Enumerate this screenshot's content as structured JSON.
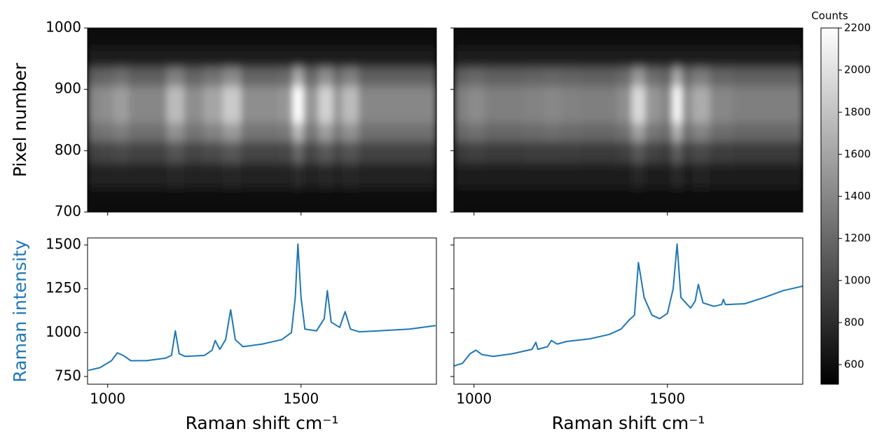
{
  "chart_data": [
    {
      "type": "heatmap",
      "ylabel": "Pixel number",
      "xlim": [
        948,
        1850
      ],
      "ylim": [
        700,
        1000
      ],
      "xticks": [
        1000,
        1500
      ],
      "yticks": [
        700,
        800,
        900,
        1000
      ],
      "show_xticklabels": false,
      "x": [
        960,
        1000,
        1030,
        1080,
        1130,
        1175,
        1220,
        1275,
        1320,
        1370,
        1420,
        1465,
        1492,
        1520,
        1570,
        1595,
        1618,
        1680,
        1760,
        1840
      ],
      "y": [
        985,
        950,
        920,
        890,
        860,
        830,
        800,
        760,
        720
      ],
      "z": [
        [
          620,
          620,
          620,
          620,
          620,
          620,
          620,
          620,
          620,
          620,
          620,
          620,
          620,
          620,
          620,
          620,
          620,
          620,
          620,
          620
        ],
        [
          680,
          680,
          680,
          680,
          680,
          680,
          680,
          680,
          680,
          680,
          680,
          680,
          680,
          680,
          680,
          680,
          680,
          680,
          680,
          680
        ],
        [
          1150,
          1180,
          1240,
          1150,
          1150,
          1360,
          1180,
          1270,
          1420,
          1180,
          1180,
          1210,
          1630,
          1210,
          1450,
          1210,
          1360,
          1150,
          1150,
          1150
        ],
        [
          1400,
          1450,
          1550,
          1400,
          1400,
          1750,
          1450,
          1600,
          1850,
          1450,
          1450,
          1500,
          2200,
          1500,
          1900,
          1500,
          1750,
          1400,
          1400,
          1400
        ],
        [
          1400,
          1450,
          1550,
          1400,
          1400,
          1750,
          1450,
          1600,
          1850,
          1450,
          1450,
          1500,
          2200,
          1500,
          1900,
          1500,
          1750,
          1400,
          1400,
          1400
        ],
        [
          1250,
          1280,
          1340,
          1250,
          1250,
          1460,
          1280,
          1370,
          1520,
          1280,
          1280,
          1310,
          1730,
          1310,
          1550,
          1310,
          1460,
          1250,
          1250,
          1250
        ],
        [
          950,
          965,
          995,
          950,
          950,
          1055,
          965,
          1010,
          1085,
          965,
          965,
          980,
          1190,
          980,
          1100,
          980,
          1055,
          950,
          950,
          950
        ],
        [
          720,
          725,
          735,
          720,
          720,
          755,
          725,
          740,
          765,
          725,
          725,
          730,
          800,
          730,
          770,
          730,
          755,
          720,
          720,
          720
        ],
        [
          620,
          620,
          620,
          620,
          620,
          620,
          620,
          620,
          620,
          620,
          620,
          620,
          620,
          620,
          620,
          620,
          620,
          620,
          620,
          620
        ]
      ]
    },
    {
      "type": "heatmap",
      "xlim": [
        948,
        1850
      ],
      "ylim": [
        700,
        1000
      ],
      "xticks": [
        1000,
        1500
      ],
      "yticks": [
        700,
        800,
        900,
        1000
      ],
      "show_xticklabels": false,
      "show_yticklabels": false,
      "x": [
        960,
        1005,
        1050,
        1100,
        1160,
        1200,
        1250,
        1300,
        1350,
        1390,
        1425,
        1460,
        1500,
        1525,
        1550,
        1580,
        1640,
        1700,
        1780,
        1840
      ],
      "y": [
        985,
        950,
        920,
        890,
        860,
        830,
        800,
        760,
        720
      ],
      "z": [
        [
          620,
          620,
          620,
          620,
          620,
          620,
          620,
          620,
          620,
          620,
          620,
          620,
          620,
          620,
          620,
          620,
          620,
          620,
          620,
          620
        ],
        [
          700,
          700,
          700,
          700,
          700,
          700,
          700,
          700,
          700,
          700,
          700,
          700,
          700,
          700,
          700,
          700,
          700,
          700,
          700,
          700
        ],
        [
          1150,
          1198,
          1150,
          1150,
          1168,
          1186,
          1162,
          1150,
          1150,
          1210,
          1510,
          1240,
          1180,
          1630,
          1210,
          1330,
          1180,
          1150,
          1150,
          1150
        ],
        [
          1350,
          1430,
          1350,
          1350,
          1380,
          1410,
          1370,
          1350,
          1350,
          1450,
          1950,
          1500,
          1400,
          2150,
          1450,
          1650,
          1400,
          1350,
          1350,
          1350
        ],
        [
          1350,
          1430,
          1350,
          1350,
          1380,
          1410,
          1370,
          1350,
          1350,
          1450,
          1950,
          1500,
          1400,
          2150,
          1450,
          1650,
          1400,
          1350,
          1350,
          1350
        ],
        [
          1200,
          1248,
          1200,
          1200,
          1218,
          1236,
          1212,
          1200,
          1200,
          1260,
          1560,
          1290,
          1230,
          1680,
          1260,
          1380,
          1230,
          1200,
          1200,
          1200
        ],
        [
          900,
          924,
          900,
          900,
          909,
          918,
          906,
          900,
          900,
          930,
          1080,
          945,
          915,
          1140,
          930,
          990,
          915,
          900,
          900,
          900
        ],
        [
          700,
          708,
          700,
          700,
          703,
          706,
          702,
          700,
          700,
          710,
          760,
          715,
          705,
          780,
          710,
          730,
          705,
          700,
          700,
          700
        ],
        [
          620,
          620,
          620,
          620,
          620,
          620,
          620,
          620,
          620,
          620,
          620,
          620,
          620,
          620,
          620,
          620,
          620,
          620,
          620,
          620
        ]
      ]
    },
    {
      "type": "line",
      "ylabel": "Raman intensity",
      "ylabel_color": "#1f77b4",
      "xlabel": "Raman shift cm⁻¹",
      "xlim": [
        948,
        1850
      ],
      "ylim": [
        706,
        1540
      ],
      "xticks": [
        1000,
        1500
      ],
      "yticks": [
        750,
        1000,
        1250,
        1500
      ],
      "color": "#1f77b4",
      "x": [
        950,
        980,
        1010,
        1025,
        1040,
        1060,
        1100,
        1150,
        1165,
        1175,
        1185,
        1200,
        1250,
        1270,
        1278,
        1290,
        1305,
        1318,
        1330,
        1350,
        1400,
        1450,
        1475,
        1485,
        1492,
        1500,
        1510,
        1540,
        1560,
        1568,
        1578,
        1600,
        1614,
        1628,
        1650,
        1700,
        1780,
        1848
      ],
      "values": [
        785,
        800,
        840,
        885,
        870,
        840,
        840,
        855,
        870,
        1010,
        880,
        865,
        870,
        900,
        955,
        905,
        960,
        1130,
        960,
        920,
        935,
        960,
        1000,
        1200,
        1505,
        1200,
        1020,
        1010,
        1080,
        1240,
        1060,
        1030,
        1120,
        1020,
        1005,
        1010,
        1020,
        1040
      ]
    },
    {
      "type": "line",
      "xlabel": "Raman shift cm⁻¹",
      "show_yticklabels": false,
      "xlim": [
        948,
        1850
      ],
      "ylim": [
        706,
        1540
      ],
      "xticks": [
        1000,
        1500
      ],
      "yticks": [
        750,
        1000,
        1250,
        1500
      ],
      "color": "#1f77b4",
      "x": [
        948,
        970,
        990,
        1005,
        1020,
        1050,
        1100,
        1150,
        1160,
        1165,
        1190,
        1200,
        1215,
        1240,
        1300,
        1350,
        1380,
        1400,
        1415,
        1425,
        1440,
        1460,
        1480,
        1500,
        1515,
        1525,
        1535,
        1560,
        1572,
        1580,
        1592,
        1620,
        1640,
        1645,
        1650,
        1700,
        1750,
        1800,
        1850
      ],
      "values": [
        810,
        825,
        880,
        900,
        875,
        865,
        880,
        905,
        945,
        905,
        920,
        955,
        935,
        950,
        965,
        990,
        1020,
        1070,
        1100,
        1400,
        1200,
        1100,
        1080,
        1110,
        1250,
        1505,
        1200,
        1140,
        1180,
        1275,
        1170,
        1150,
        1160,
        1190,
        1160,
        1165,
        1200,
        1240,
        1265
      ]
    },
    {
      "type": "colorbar",
      "label": "Counts",
      "colormap": "gray",
      "vlim": [
        507,
        2200
      ],
      "ticks": [
        600,
        800,
        1000,
        1200,
        1400,
        1600,
        1800,
        2000,
        2200
      ]
    }
  ]
}
